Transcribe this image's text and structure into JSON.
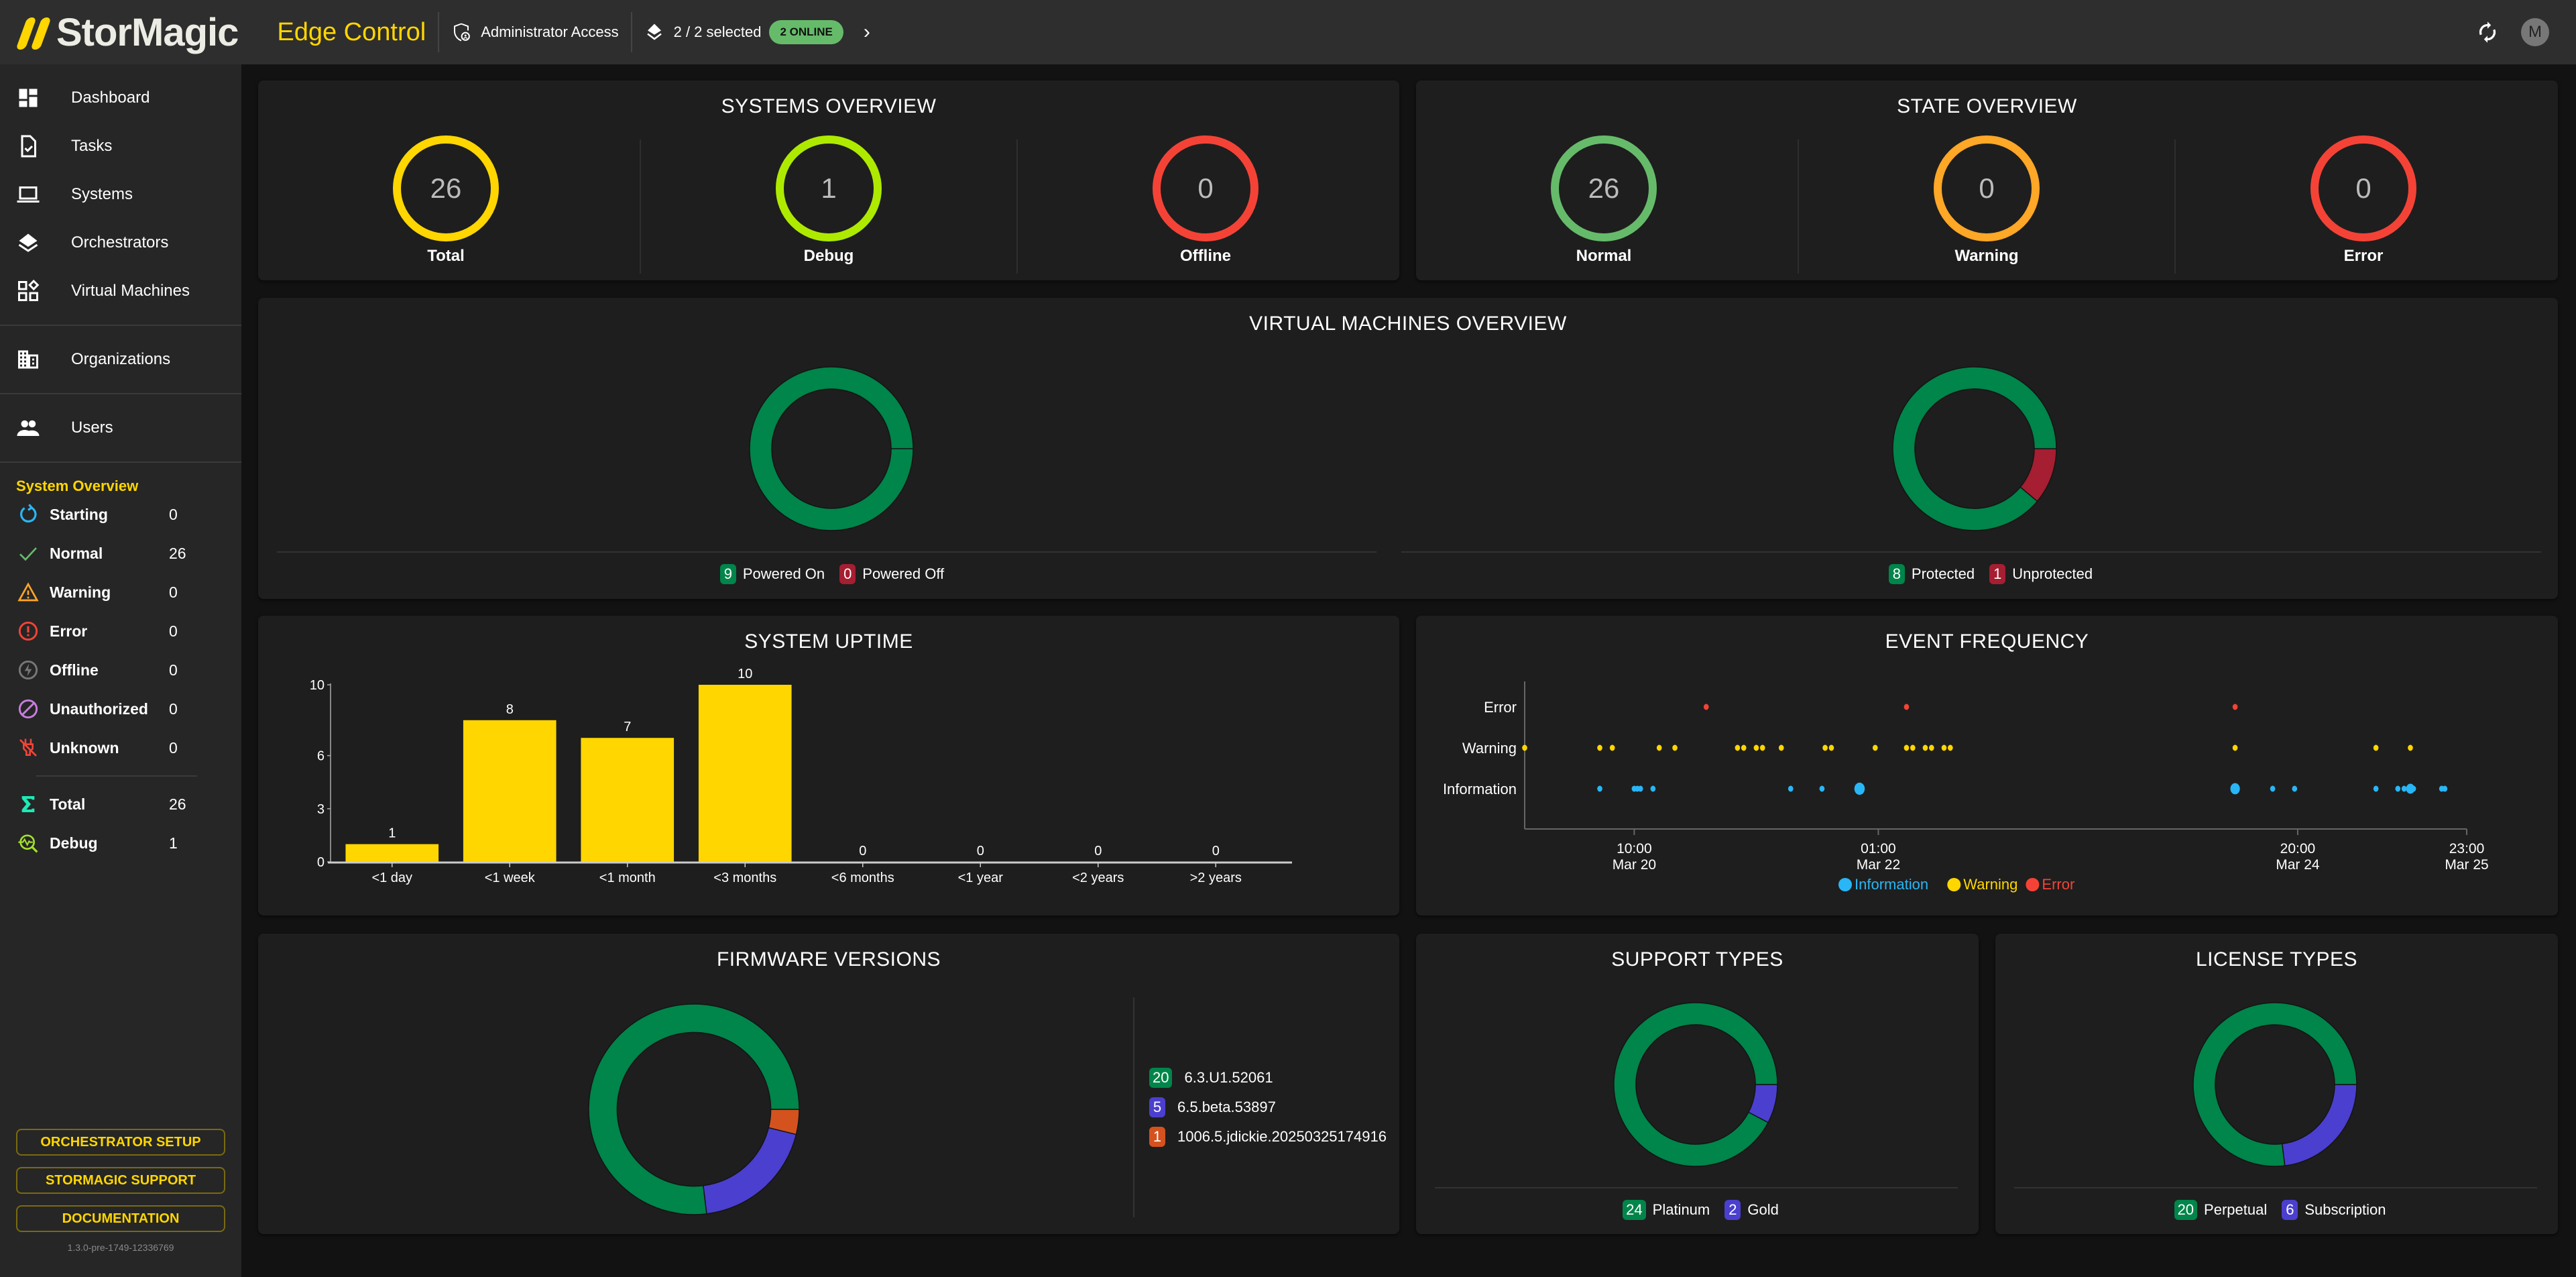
{
  "header": {
    "logo_text": "StorMagic",
    "app_title": "Edge Control",
    "access_label": "Administrator Access",
    "selection_label": "2 / 2 selected",
    "online_badge": "2 ONLINE",
    "avatar_initial": "M"
  },
  "sidebar": {
    "nav": [
      {
        "label": "Dashboard",
        "icon": "dashboard-icon"
      },
      {
        "label": "Tasks",
        "icon": "tasks-icon"
      },
      {
        "label": "Systems",
        "icon": "laptop-icon"
      },
      {
        "label": "Orchestrators",
        "icon": "layers-icon"
      },
      {
        "label": "Virtual Machines",
        "icon": "widgets-icon"
      },
      {
        "label": "Organizations",
        "icon": "building-icon"
      },
      {
        "label": "Users",
        "icon": "people-icon"
      }
    ],
    "system_overview": {
      "title": "System Overview",
      "rows": [
        {
          "label": "Starting",
          "value": "0",
          "color": "#29b6f6"
        },
        {
          "label": "Normal",
          "value": "26",
          "color": "#66bb6a"
        },
        {
          "label": "Warning",
          "value": "0",
          "color": "#ffa726"
        },
        {
          "label": "Error",
          "value": "0",
          "color": "#f44336"
        },
        {
          "label": "Offline",
          "value": "0",
          "color": "#777777"
        },
        {
          "label": "Unauthorized",
          "value": "0",
          "color": "#c77ddf"
        },
        {
          "label": "Unknown",
          "value": "0",
          "color": "#f44336"
        },
        {
          "label": "Total",
          "value": "26",
          "color": "#1de9b6"
        },
        {
          "label": "Debug",
          "value": "1",
          "color": "#a4e22a"
        }
      ]
    },
    "buttons": [
      "ORCHESTRATOR SETUP",
      "STORMAGIC SUPPORT",
      "DOCUMENTATION"
    ],
    "version": "1.3.0-pre-1749-12336769"
  },
  "systems_overview": {
    "title": "SYSTEMS OVERVIEW",
    "items": [
      {
        "label": "Total",
        "value": "26",
        "color": "#ffd600"
      },
      {
        "label": "Debug",
        "value": "1",
        "color": "#aeea00"
      },
      {
        "label": "Offline",
        "value": "0",
        "color": "#f44336"
      }
    ]
  },
  "state_overview": {
    "title": "STATE OVERVIEW",
    "items": [
      {
        "label": "Normal",
        "value": "26",
        "color": "#66bb6a"
      },
      {
        "label": "Warning",
        "value": "0",
        "color": "#ffa726"
      },
      {
        "label": "Error",
        "value": "0",
        "color": "#f44336"
      }
    ]
  },
  "vm_overview": {
    "title": "VIRTUAL MACHINES OVERVIEW",
    "power": [
      {
        "label": "Powered On",
        "value": 9,
        "color": "#00854a"
      },
      {
        "label": "Powered Off",
        "value": 0,
        "color": "#a61e31"
      }
    ],
    "protection": [
      {
        "label": "Protected",
        "value": 8,
        "color": "#00854a"
      },
      {
        "label": "Unprotected",
        "value": 1,
        "color": "#a61e31"
      }
    ]
  },
  "firmware": {
    "title": "FIRMWARE VERSIONS",
    "items": [
      {
        "label": "6.3.U1.52061",
        "value": 20,
        "color": "#00854a"
      },
      {
        "label": "6.5.beta.53897",
        "value": 5,
        "color": "#4b3fcf"
      },
      {
        "label": "1006.5.jdickie.20250325174916",
        "value": 1,
        "color": "#d4521e"
      }
    ]
  },
  "support": {
    "title": "SUPPORT TYPES",
    "items": [
      {
        "label": "Platinum",
        "value": 24,
        "color": "#00854a"
      },
      {
        "label": "Gold",
        "value": 2,
        "color": "#4b3fcf"
      }
    ]
  },
  "license": {
    "title": "LICENSE TYPES",
    "items": [
      {
        "label": "Perpetual",
        "value": 20,
        "color": "#00854a"
      },
      {
        "label": "Subscription",
        "value": 6,
        "color": "#4b3fcf"
      }
    ]
  },
  "chart_data": [
    {
      "type": "bar",
      "title": "SYSTEM UPTIME",
      "categories": [
        "<1 day",
        "<1 week",
        "<1 month",
        "<3 months",
        "<6 months",
        "<1 year",
        "<2 years",
        ">2 years"
      ],
      "values": [
        1,
        8,
        7,
        10,
        0,
        0,
        0,
        0
      ],
      "yticks": [
        0,
        3,
        6,
        10
      ],
      "ylim": [
        0,
        10
      ],
      "color": "#ffd600",
      "xlabel": "",
      "ylabel": ""
    },
    {
      "type": "scatter",
      "title": "EVENT FREQUENCY",
      "categories": [
        "Error",
        "Warning",
        "Information"
      ],
      "xlim_hours": [
        0,
        138
      ],
      "xticks": [
        {
          "hours": 17.5,
          "time": "10:00",
          "date": "Mar 20"
        },
        {
          "hours": 56.5,
          "time": "01:00",
          "date": "Mar 22"
        },
        {
          "hours": 123.5,
          "time": "20:00",
          "date": "Mar 24"
        },
        {
          "hours": 150.5,
          "time": "23:00",
          "date": "Mar 25"
        }
      ],
      "series": [
        {
          "name": "Information",
          "color": "#29b6f6",
          "points": [
            [
              12,
              1
            ],
            [
              17.5,
              1
            ],
            [
              18,
              1
            ],
            [
              18.5,
              1
            ],
            [
              20.5,
              1
            ],
            [
              42.5,
              1
            ],
            [
              47.5,
              1
            ],
            [
              53.5,
              2.5
            ],
            [
              113.5,
              2
            ],
            [
              119.5,
              1
            ],
            [
              123,
              1
            ],
            [
              136,
              1
            ],
            [
              139.5,
              1
            ],
            [
              140.5,
              1
            ],
            [
              141.5,
              1.5
            ],
            [
              142,
              1
            ],
            [
              146.5,
              1
            ],
            [
              147,
              1
            ]
          ]
        },
        {
          "name": "Warning",
          "color": "#ffd600",
          "points": [
            [
              0,
              1
            ],
            [
              12,
              1
            ],
            [
              14,
              1
            ],
            [
              24,
              1
            ],
            [
              21.5,
              1
            ],
            [
              34,
              1
            ],
            [
              35,
              1
            ],
            [
              37,
              1
            ],
            [
              38,
              1
            ],
            [
              41,
              1
            ],
            [
              48,
              1
            ],
            [
              49,
              1
            ],
            [
              56,
              1
            ],
            [
              61,
              1
            ],
            [
              62,
              1
            ],
            [
              64,
              1
            ],
            [
              65,
              1
            ],
            [
              67,
              1
            ],
            [
              68,
              1
            ],
            [
              113.5,
              1
            ],
            [
              136,
              1
            ],
            [
              141.5,
              1
            ]
          ]
        },
        {
          "name": "Error",
          "color": "#f44336",
          "points": [
            [
              29,
              1
            ],
            [
              61,
              1
            ],
            [
              113.5,
              1
            ]
          ]
        }
      ],
      "legend": [
        "Information",
        "Warning",
        "Error"
      ]
    }
  ]
}
